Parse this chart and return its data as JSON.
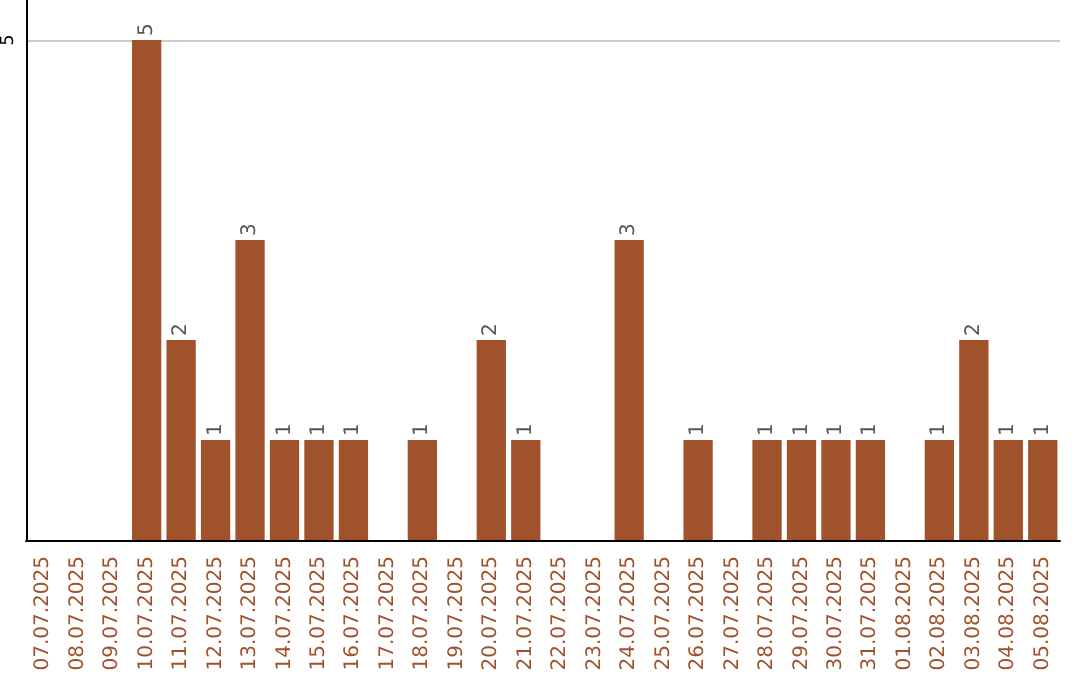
{
  "chart_data": {
    "type": "bar",
    "categories": [
      "07.07.2025",
      "08.07.2025",
      "09.07.2025",
      "10.07.2025",
      "11.07.2025",
      "12.07.2025",
      "13.07.2025",
      "14.07.2025",
      "15.07.2025",
      "16.07.2025",
      "17.07.2025",
      "18.07.2025",
      "19.07.2025",
      "20.07.2025",
      "21.07.2025",
      "22.07.2025",
      "23.07.2025",
      "24.07.2025",
      "25.07.2025",
      "26.07.2025",
      "27.07.2025",
      "28.07.2025",
      "29.07.2025",
      "30.07.2025",
      "31.07.2025",
      "01.08.2025",
      "02.08.2025",
      "03.08.2025",
      "04.08.2025",
      "05.08.2025"
    ],
    "values": [
      0,
      0,
      0,
      5,
      2,
      1,
      3,
      1,
      1,
      1,
      0,
      1,
      0,
      2,
      1,
      0,
      0,
      3,
      0,
      1,
      0,
      1,
      1,
      1,
      1,
      0,
      1,
      2,
      1,
      1
    ],
    "value_labels": [
      null,
      null,
      null,
      "5",
      "2",
      "1",
      "3",
      "1",
      "1",
      "1",
      null,
      "1",
      null,
      "2",
      "1",
      null,
      null,
      "3",
      null,
      "1",
      null,
      "1",
      "1",
      "1",
      "1",
      null,
      "1",
      "2",
      "1",
      "1"
    ],
    "color": "#a0522d",
    "ylim": [
      0,
      5.4
    ],
    "yticks": [
      {
        "value": 0,
        "label": null
      },
      5
    ],
    "grid": "y"
  }
}
